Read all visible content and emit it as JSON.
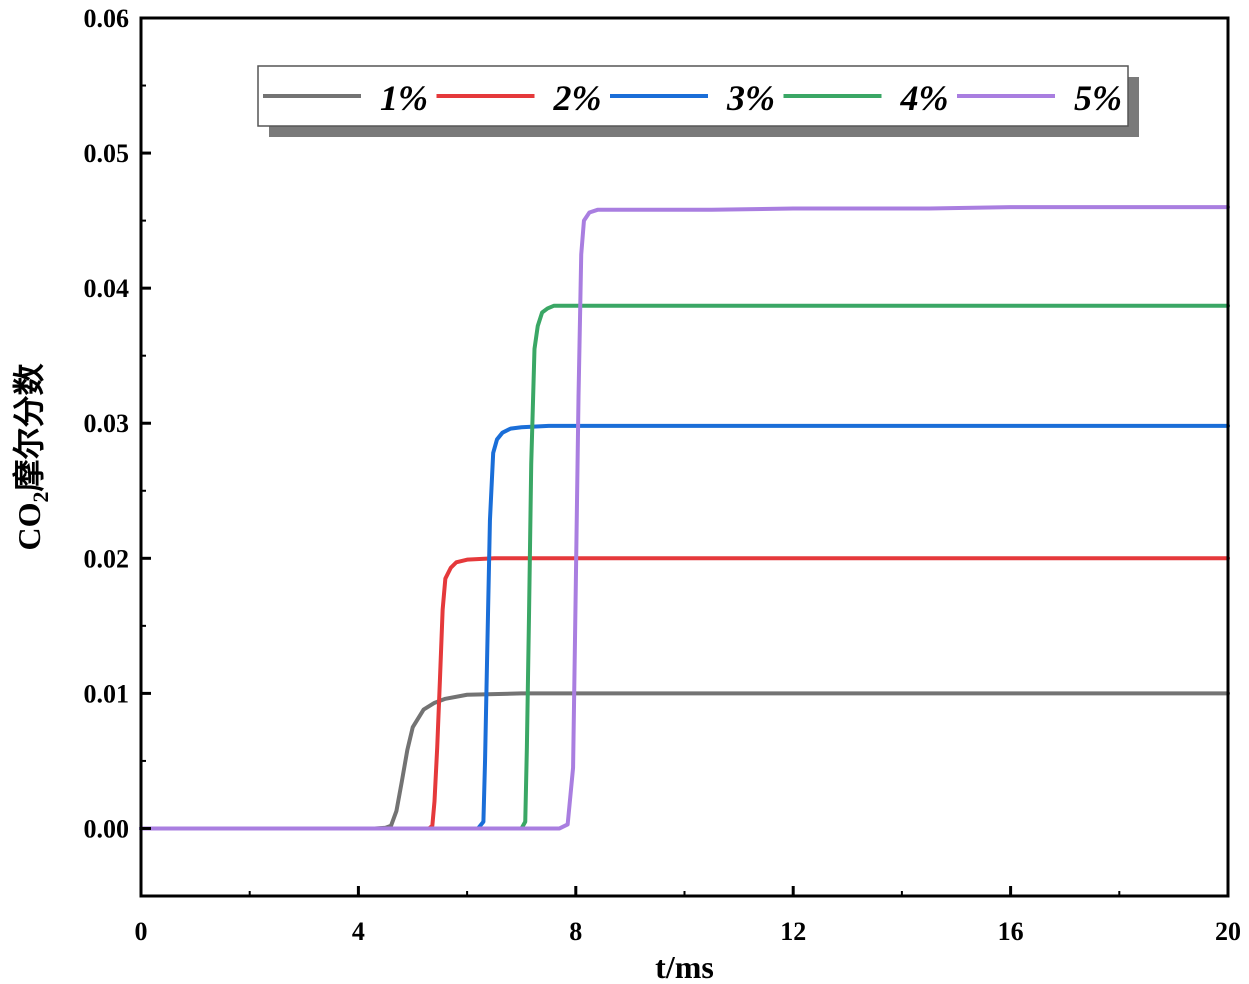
{
  "chart_data": {
    "type": "line",
    "xlabel": "t/ms",
    "ylabel_main": "CO",
    "ylabel_sub": "2",
    "ylabel_rest": "摩尔分数",
    "xlim": [
      0,
      20
    ],
    "ylim": [
      -0.005,
      0.06
    ],
    "x_ticks": [
      0,
      4,
      8,
      12,
      16,
      20
    ],
    "x_tick_labels": [
      "0",
      "4",
      "8",
      "12",
      "16",
      "20"
    ],
    "y_ticks": [
      0.0,
      0.01,
      0.02,
      0.03,
      0.04,
      0.05,
      0.06
    ],
    "y_tick_labels": [
      "0.00",
      "0.01",
      "0.02",
      "0.03",
      "0.04",
      "0.05",
      "0.06"
    ],
    "grid": false,
    "legend_position": "top",
    "series": [
      {
        "name": "1%",
        "color": "#737373",
        "x": [
          0,
          4.3,
          4.5,
          4.6,
          4.7,
          4.8,
          4.9,
          5.0,
          5.2,
          5.4,
          5.6,
          6.0,
          7.0,
          8.0,
          12.0,
          16.0,
          20.0
        ],
        "y": [
          0,
          0,
          5e-05,
          0.0002,
          0.0013,
          0.0035,
          0.0058,
          0.0075,
          0.0088,
          0.0093,
          0.0096,
          0.0099,
          0.01,
          0.01,
          0.01,
          0.01,
          0.01
        ]
      },
      {
        "name": "2%",
        "color": "#e5393b",
        "x": [
          0,
          5.3,
          5.36,
          5.4,
          5.45,
          5.5,
          5.55,
          5.6,
          5.7,
          5.8,
          6.0,
          6.5,
          7.0,
          8.0,
          12.0,
          16.0,
          20.0
        ],
        "y": [
          0,
          0,
          0.0002,
          0.002,
          0.006,
          0.011,
          0.0162,
          0.0185,
          0.0193,
          0.0197,
          0.0199,
          0.02,
          0.02,
          0.02,
          0.02,
          0.02,
          0.02
        ]
      },
      {
        "name": "3%",
        "color": "#1a6ed8",
        "x": [
          0,
          6.2,
          6.3,
          6.33,
          6.37,
          6.42,
          6.48,
          6.55,
          6.65,
          6.8,
          7.0,
          7.5,
          8.0,
          12.0,
          16.0,
          20.0
        ],
        "y": [
          0,
          0,
          0.0005,
          0.005,
          0.013,
          0.0228,
          0.0278,
          0.0288,
          0.0293,
          0.0296,
          0.0297,
          0.0298,
          0.0298,
          0.0298,
          0.0298,
          0.0298
        ]
      },
      {
        "name": "4%",
        "color": "#3aa765",
        "x": [
          0,
          7.0,
          7.07,
          7.1,
          7.14,
          7.18,
          7.24,
          7.3,
          7.38,
          7.48,
          7.6,
          7.8,
          8.0,
          12.0,
          16.0,
          20.0
        ],
        "y": [
          0,
          0,
          0.0005,
          0.006,
          0.016,
          0.027,
          0.0355,
          0.0372,
          0.0382,
          0.0385,
          0.0387,
          0.0387,
          0.0387,
          0.0387,
          0.0387,
          0.0387
        ]
      },
      {
        "name": "5%",
        "color": "#a97ee0",
        "x": [
          0,
          7.7,
          7.85,
          7.95,
          8.0,
          8.05,
          8.1,
          8.15,
          8.25,
          8.4,
          8.6,
          10.5,
          12.0,
          14.5,
          16.0,
          20.0
        ],
        "y": [
          0,
          0,
          0.0003,
          0.0045,
          0.018,
          0.032,
          0.0425,
          0.045,
          0.0456,
          0.0458,
          0.0458,
          0.0458,
          0.0459,
          0.0459,
          0.046,
          0.046
        ]
      }
    ]
  }
}
